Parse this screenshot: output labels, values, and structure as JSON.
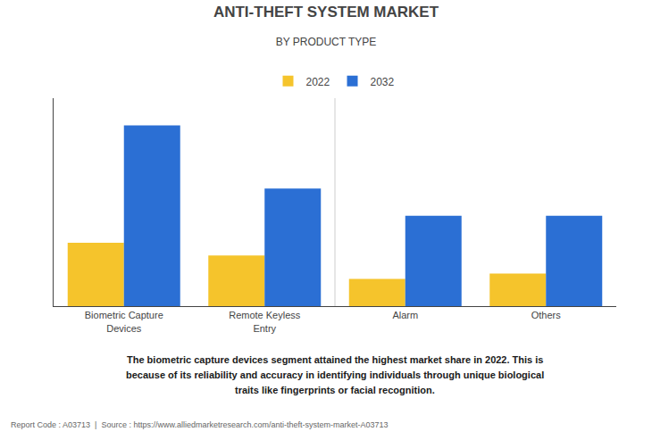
{
  "chart_data": {
    "type": "bar",
    "title": "ANTI-THEFT SYSTEM MARKET",
    "subtitle": "BY PRODUCT TYPE",
    "categories": [
      "Biometric Capture\nDevices",
      "Remote Keyless\nEntry",
      "Alarm",
      "Others"
    ],
    "series": [
      {
        "name": "2022",
        "color": "#F5C42C",
        "values": [
          35,
          28,
          15,
          18
        ]
      },
      {
        "name": "2032",
        "color": "#2B6FD4",
        "values": [
          100,
          65,
          50,
          50
        ]
      }
    ],
    "ylim": [
      0,
      115
    ],
    "yticks": [],
    "grid": false,
    "tick_labels": "x",
    "legend": "top",
    "annotations": [
      "The biometric capture devices segment attained the highest market share in 2022. This is",
      "because of its reliability and accuracy in identifying individuals through unique biological",
      "traits like fingerprints or facial recognition.",
      "Report Code : A03713  |  Source : https://www.alliedmarketresearch.com/anti-theft-system-market-A03713"
    ]
  }
}
